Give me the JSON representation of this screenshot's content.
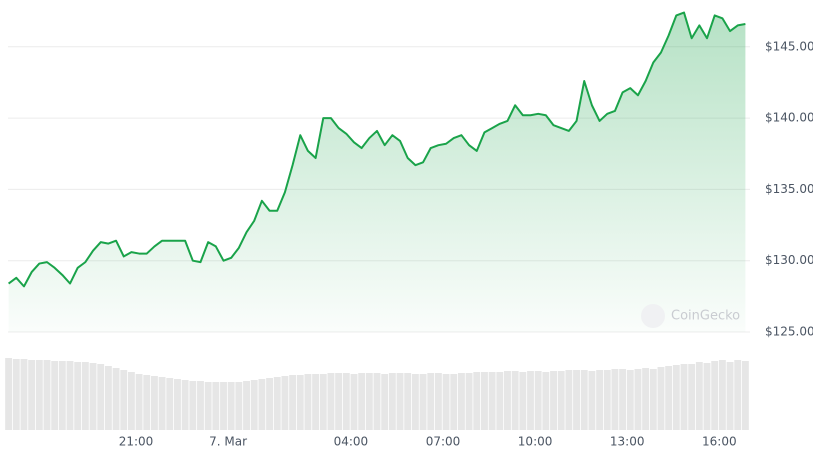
{
  "chart_data": {
    "type": "line",
    "watermark": "CoinGecko",
    "color": "#1aa34a",
    "x": [
      16.85,
      17.1,
      17.35,
      17.6,
      17.85,
      18.1,
      18.35,
      18.6,
      18.85,
      19.1,
      19.35,
      19.6,
      19.85,
      20.1,
      20.35,
      20.6,
      20.85,
      21.1,
      21.35,
      21.6,
      21.85,
      22.1,
      22.35,
      22.6,
      22.85,
      23.1,
      23.35,
      23.6,
      23.85,
      24.1,
      24.35,
      24.6,
      24.85,
      25.1,
      25.35,
      25.6,
      25.85,
      26.1,
      26.35,
      26.6,
      26.85,
      27.1,
      27.35,
      27.6,
      27.85,
      28.1,
      28.35,
      28.6,
      28.85,
      29.1,
      29.35,
      29.6,
      29.85,
      30.1,
      30.35,
      30.6,
      30.85,
      31.1,
      31.35,
      31.6,
      31.85,
      32.1,
      32.35,
      32.6,
      32.85,
      33.1,
      33.35,
      33.6,
      33.85,
      34.1,
      34.35,
      34.6,
      34.85,
      35.1,
      35.35,
      35.6,
      35.85,
      36.1,
      36.35,
      36.6,
      36.85,
      37.1,
      37.35,
      37.6,
      37.85,
      38.1,
      38.35,
      38.6,
      38.85,
      39.1,
      39.35,
      39.6,
      39.85,
      40.1,
      40.35,
      40.6,
      40.85
    ],
    "values": [
      128.4,
      128.8,
      128.2,
      129.2,
      129.8,
      129.9,
      129.5,
      129.0,
      128.4,
      129.5,
      129.9,
      130.7,
      131.3,
      131.2,
      131.4,
      130.3,
      130.6,
      130.5,
      130.5,
      131.0,
      131.4,
      131.4,
      131.4,
      131.4,
      130.0,
      129.9,
      131.3,
      131.0,
      130.0,
      130.2,
      130.9,
      132.0,
      132.8,
      134.2,
      133.5,
      133.5,
      134.8,
      136.7,
      138.8,
      137.7,
      137.2,
      140.0,
      140.0,
      139.3,
      138.9,
      138.3,
      137.9,
      138.6,
      139.1,
      138.1,
      138.8,
      138.4,
      137.2,
      136.7,
      136.9,
      137.9,
      138.1,
      138.2,
      138.6,
      138.8,
      138.1,
      137.7,
      139.0,
      139.3,
      139.6,
      139.8,
      140.9,
      140.2,
      140.2,
      140.3,
      140.2,
      139.5,
      139.3,
      139.1,
      139.8,
      142.6,
      140.9,
      139.8,
      140.3,
      140.5,
      141.8,
      142.1,
      141.6,
      142.6,
      143.9,
      144.6,
      145.8,
      147.2,
      147.4,
      145.6,
      146.5,
      145.6,
      147.2,
      147.0,
      146.1,
      146.5,
      146.6
    ],
    "volume": {
      "color": "#e6e6e6",
      "values": [
        72,
        71,
        71,
        70,
        70,
        70,
        69,
        69,
        69,
        68,
        68,
        67,
        66,
        64,
        62,
        60,
        58,
        56,
        55,
        54,
        53,
        52,
        51,
        50,
        49,
        49,
        48,
        48,
        48,
        48,
        48,
        49,
        50,
        51,
        52,
        53,
        54,
        55,
        55,
        56,
        56,
        56,
        57,
        57,
        57,
        56,
        57,
        57,
        57,
        56,
        57,
        57,
        57,
        56,
        56,
        57,
        57,
        56,
        56,
        57,
        57,
        58,
        58,
        58,
        58,
        59,
        59,
        58,
        59,
        59,
        58,
        59,
        59,
        60,
        60,
        60,
        59,
        60,
        60,
        61,
        61,
        60,
        61,
        62,
        61,
        63,
        64,
        65,
        66,
        66,
        68,
        67,
        69,
        70,
        68,
        70,
        69
      ]
    },
    "xlim": [
      16.83,
      41.0
    ],
    "xticks": [
      {
        "value": 21,
        "label": "21:00"
      },
      {
        "value": 24,
        "label": "7. Mar"
      },
      {
        "value": 28,
        "label": "04:00"
      },
      {
        "value": 31,
        "label": "07:00"
      },
      {
        "value": 34,
        "label": "10:00"
      },
      {
        "value": 37,
        "label": "13:00"
      },
      {
        "value": 40,
        "label": "16:00"
      }
    ],
    "ylim": [
      125,
      148
    ],
    "yticks": [
      {
        "value": 125,
        "label": "$125.00"
      },
      {
        "value": 130,
        "label": "$130.00"
      },
      {
        "value": 135,
        "label": "$135.00"
      },
      {
        "value": 140,
        "label": "$140.00"
      },
      {
        "value": 145,
        "label": "$145.00"
      }
    ],
    "grid": true
  }
}
